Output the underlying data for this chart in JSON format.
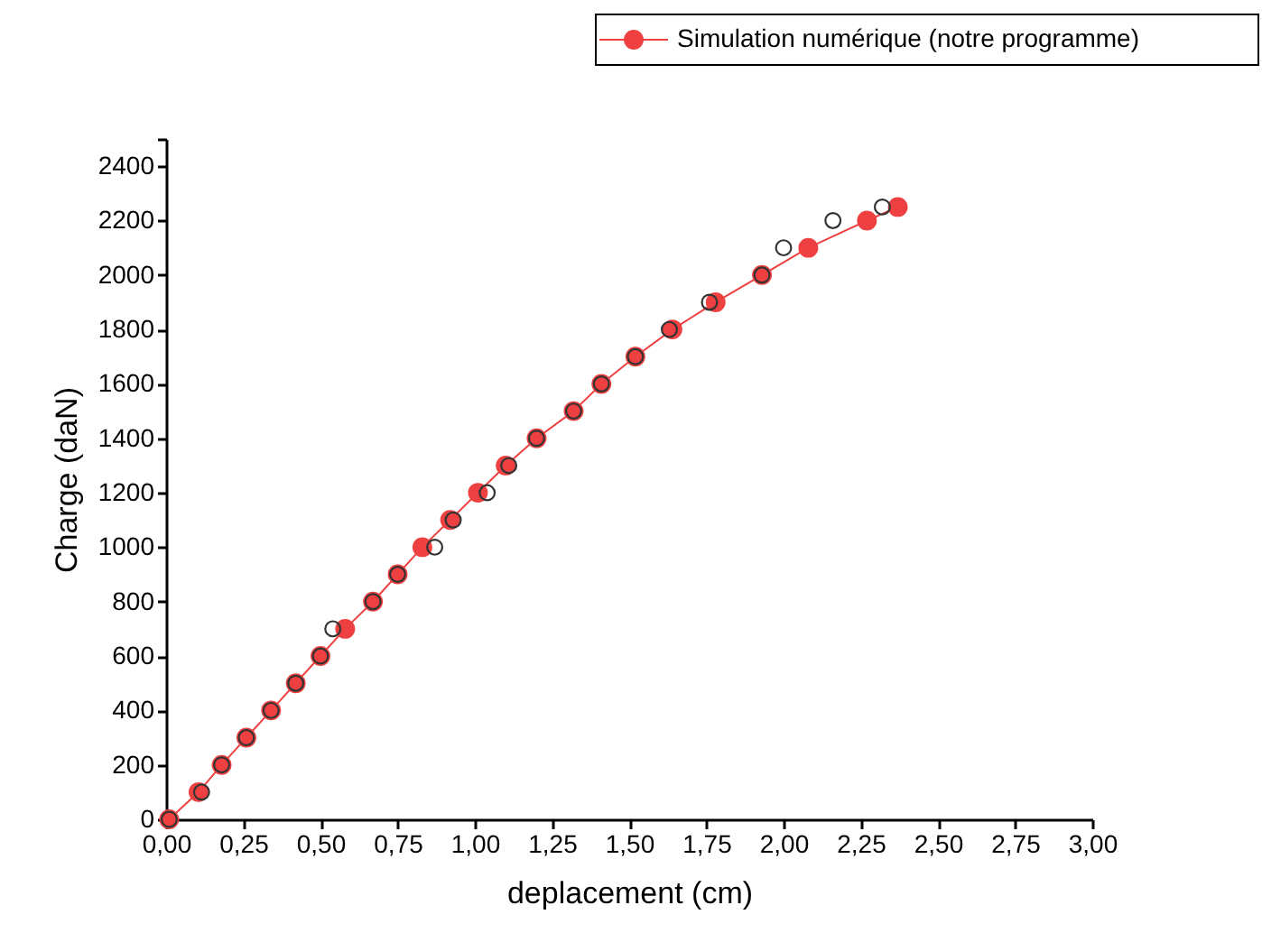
{
  "chart_data": {
    "type": "line",
    "xlabel": "deplacement (cm)",
    "ylabel": "Charge (daN)",
    "xlim": [
      0,
      3
    ],
    "ylim": [
      0,
      2500
    ],
    "xticks": [
      {
        "value": 0,
        "label": "0,00"
      },
      {
        "value": 0.25,
        "label": "0,25"
      },
      {
        "value": 0.5,
        "label": "0,50"
      },
      {
        "value": 0.75,
        "label": "0,75"
      },
      {
        "value": 1,
        "label": "1,00"
      },
      {
        "value": 1.25,
        "label": "1,25"
      },
      {
        "value": 1.5,
        "label": "1,50"
      },
      {
        "value": 1.75,
        "label": "1,75"
      },
      {
        "value": 2,
        "label": "2,00"
      },
      {
        "value": 2.25,
        "label": "2,25"
      },
      {
        "value": 2.5,
        "label": "2,50"
      },
      {
        "value": 2.75,
        "label": "2,75"
      },
      {
        "value": 3,
        "label": "3,00"
      }
    ],
    "yticks": [
      0,
      200,
      400,
      600,
      800,
      1000,
      1200,
      1400,
      1600,
      1800,
      2000,
      2200,
      2400,
      {
        "value": 2500,
        "label": null
      }
    ],
    "grid": false,
    "legend": "top right",
    "marker": "circle",
    "series": [
      {
        "type": "scatter",
        "color": "#333333",
        "x": [
          0.01,
          0.115,
          0.18,
          0.26,
          0.34,
          0.42,
          0.5,
          0.54,
          0.67,
          0.75,
          0.87,
          0.93,
          1.04,
          1.11,
          1.2,
          1.32,
          1.41,
          1.52,
          1.63,
          1.76,
          1.93,
          2.0,
          2.16,
          2.32
        ],
        "values": [
          0,
          100,
          200,
          300,
          400,
          500,
          600,
          700,
          800,
          900,
          1000,
          1100,
          1200,
          1300,
          1400,
          1500,
          1600,
          1700,
          1800,
          1900,
          2000,
          2100,
          2200,
          2250
        ]
      },
      {
        "type": "line",
        "name": "Simulation numérique (notre programme)",
        "color": "#ee4040",
        "x": [
          0.01,
          0.105,
          0.18,
          0.26,
          0.34,
          0.42,
          0.5,
          0.58,
          0.67,
          0.75,
          0.83,
          0.92,
          1.01,
          1.1,
          1.2,
          1.32,
          1.41,
          1.52,
          1.64,
          1.78,
          1.93,
          2.08,
          2.27,
          2.37
        ],
        "values": [
          0,
          100,
          200,
          300,
          400,
          500,
          600,
          700,
          800,
          900,
          1000,
          1100,
          1200,
          1300,
          1400,
          1500,
          1600,
          1700,
          1800,
          1900,
          2000,
          2100,
          2200,
          2250
        ]
      }
    ]
  }
}
